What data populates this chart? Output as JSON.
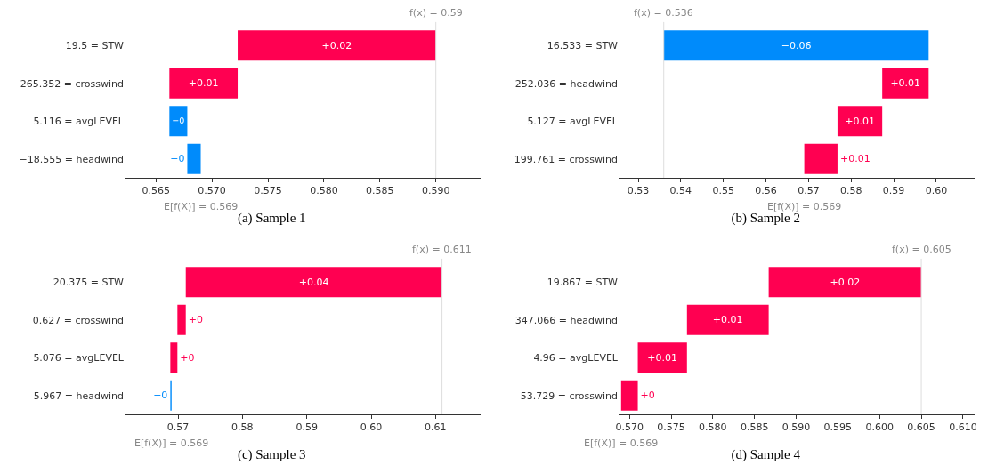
{
  "chart_data": [
    {
      "type": "bar",
      "orientation": "horizontal",
      "title": "(a) Sample 1",
      "categories": [
        "19.5 = STW",
        "265.352 = crosswind",
        "5.116 = avgLEVEL",
        "−18.555 = headwind"
      ],
      "base": [
        0.5723,
        0.5662,
        0.5678,
        0.569
      ],
      "values": [
        0.0177,
        0.0061,
        -0.0016,
        -0.0012
      ],
      "colors": [
        "#ff0051",
        "#ff0051",
        "#008bfb",
        "#008bfb"
      ],
      "value_labels": [
        "+0.02",
        "+0.01",
        "−0",
        "−0"
      ],
      "xlim": [
        0.5622,
        0.594
      ],
      "xticks": [
        0.565,
        {
          "value": 0.57,
          "label": "0.570"
        },
        0.575,
        {
          "value": 0.58,
          "label": "0.580"
        },
        0.585,
        {
          "value": 0.59,
          "label": "0.590"
        }
      ],
      "ref_lines": [
        {
          "axis": "x",
          "value": 0.59,
          "label": "f(x) = 0.59",
          "color": "#dddddd"
        }
      ],
      "annotations": [
        "E[f(X)] = 0.569"
      ]
    },
    {
      "type": "bar",
      "orientation": "horizontal",
      "title": "(b) Sample 2",
      "categories": [
        "16.533 = STW",
        "252.036 = headwind",
        "5.127 = avgLEVEL",
        "199.761 = crosswind"
      ],
      "base": [
        0.5982,
        0.5873,
        0.5768,
        0.569
      ],
      "values": [
        -0.0622,
        0.0109,
        0.0105,
        0.0078
      ],
      "colors": [
        "#008bfb",
        "#ff0051",
        "#ff0051",
        "#ff0051"
      ],
      "value_labels": [
        "−0.06",
        "+0.01",
        "+0.01",
        "+0.01"
      ],
      "xlim": [
        0.5254,
        0.609
      ],
      "xticks": [
        0.53,
        0.54,
        0.55,
        0.56,
        0.57,
        0.58,
        0.59,
        {
          "value": 0.6,
          "label": "0.60"
        }
      ],
      "ref_lines": [
        {
          "axis": "x",
          "value": 0.536,
          "label": "f(x) = 0.536",
          "color": "#dddddd"
        }
      ],
      "annotations": [
        "E[f(X)] = 0.569"
      ]
    },
    {
      "type": "bar",
      "orientation": "horizontal",
      "title": "(c) Sample 3",
      "categories": [
        "20.375 = STW",
        "0.627 = crosswind",
        "5.076 = avgLEVEL",
        "5.967 = headwind"
      ],
      "base": [
        0.5712,
        0.5699,
        0.5688,
        0.569
      ],
      "values": [
        0.0398,
        0.0013,
        0.0011,
        -0.0002
      ],
      "colors": [
        "#ff0051",
        "#ff0051",
        "#ff0051",
        "#008bfb"
      ],
      "value_labels": [
        "+0.04",
        "+0",
        "+0",
        "−0"
      ],
      "xlim": [
        0.5617,
        0.617
      ],
      "xticks": [
        0.57,
        0.58,
        0.59,
        {
          "value": 0.6,
          "label": "0.60"
        },
        0.61
      ],
      "ref_lines": [
        {
          "axis": "x",
          "value": 0.611,
          "label": "f(x) = 0.611",
          "color": "#dddddd"
        }
      ],
      "annotations": [
        "E[f(X)] = 0.569"
      ]
    },
    {
      "type": "bar",
      "orientation": "horizontal",
      "title": "(d) Sample 4",
      "categories": [
        "19.867 = STW",
        "347.066 = headwind",
        "4.96 = avgLEVEL",
        "53.729 = crosswind"
      ],
      "base": [
        0.5867,
        0.5769,
        0.571,
        0.569
      ],
      "values": [
        0.0183,
        0.0098,
        0.0059,
        0.002
      ],
      "colors": [
        "#ff0051",
        "#ff0051",
        "#ff0051",
        "#ff0051"
      ],
      "value_labels": [
        "+0.02",
        "+0.01",
        "+0.01",
        "+0"
      ],
      "xlim": [
        0.5687,
        0.6114
      ],
      "xticks": [
        {
          "value": 0.57,
          "label": "0.570"
        },
        0.575,
        {
          "value": 0.58,
          "label": "0.580"
        },
        0.585,
        {
          "value": 0.59,
          "label": "0.590"
        },
        0.595,
        {
          "value": 0.6,
          "label": "0.600"
        },
        0.605,
        {
          "value": 0.61,
          "label": "0.610"
        }
      ],
      "ref_lines": [
        {
          "axis": "x",
          "value": 0.605,
          "label": "f(x) = 0.605",
          "color": "#dddddd"
        }
      ],
      "annotations": [
        "E[f(X)] = 0.569"
      ]
    }
  ]
}
